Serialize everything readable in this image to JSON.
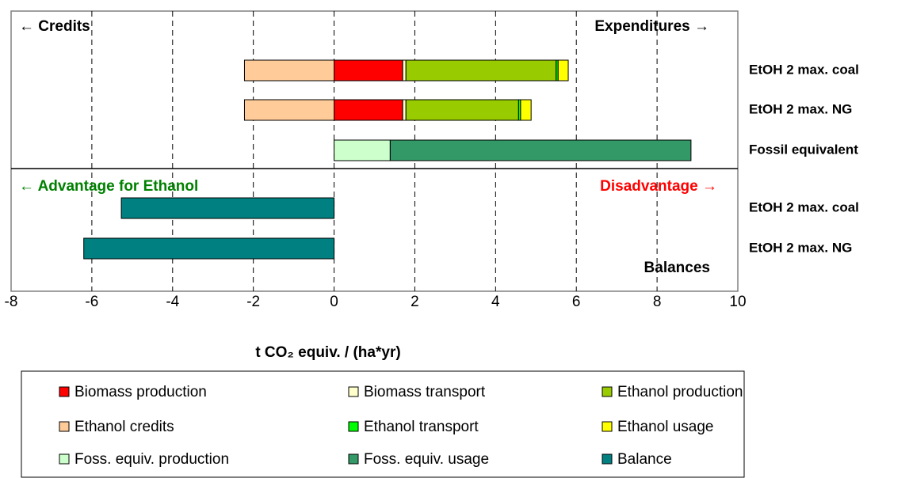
{
  "chart_data": {
    "type": "stacked-bar-horizontal",
    "categories": [
      "EtOH 2 max. coal",
      "EtOH 2 max. NG",
      "Fossil equivalent",
      "EtOH 2 max. coal",
      "EtOH 2 max. NG"
    ],
    "series": [
      {
        "name": "Biomass production",
        "color": "#ff0000",
        "values": [
          1.7,
          1.7,
          null,
          null,
          null
        ]
      },
      {
        "name": "Biomass transport",
        "color": "#ffffcc",
        "values": [
          0.08,
          0.08,
          null,
          null,
          null
        ]
      },
      {
        "name": "Ethanol production",
        "color": "#99cc00",
        "values": [
          3.72,
          2.79,
          null,
          null,
          null
        ]
      },
      {
        "name": "Ethanol credits",
        "color": "#ffcc99",
        "values": [
          -2.22,
          -2.22,
          null,
          null,
          null
        ]
      },
      {
        "name": "Ethanol transport",
        "color": "#00ff00",
        "values": [
          0.05,
          0.05,
          null,
          null,
          null
        ]
      },
      {
        "name": "Ethanol usage",
        "color": "#ffff00",
        "values": [
          0.25,
          0.26,
          null,
          null,
          null
        ]
      },
      {
        "name": "Foss. equiv. production",
        "color": "#ccffcc",
        "values": [
          null,
          null,
          1.39,
          null,
          null
        ]
      },
      {
        "name": "Foss. equiv. usage",
        "color": "#339966",
        "values": [
          null,
          null,
          7.45,
          null,
          null
        ]
      },
      {
        "name": "Balance",
        "color": "#008080",
        "values": [
          null,
          null,
          null,
          -5.27,
          -6.2
        ]
      }
    ],
    "xlim": [
      -8,
      10
    ],
    "xticks": [
      -8,
      -6,
      -4,
      -2,
      0,
      2,
      4,
      6,
      8,
      10
    ],
    "grid": true,
    "x_label": "t CO₂ equiv. / (ha*yr)",
    "annotations": {
      "credits": "← Credits",
      "expenditures": "Expenditures →",
      "advantage": "← Advantage for Ethanol",
      "disadvantage": "Disadvantage →",
      "balances": "Balances"
    }
  }
}
